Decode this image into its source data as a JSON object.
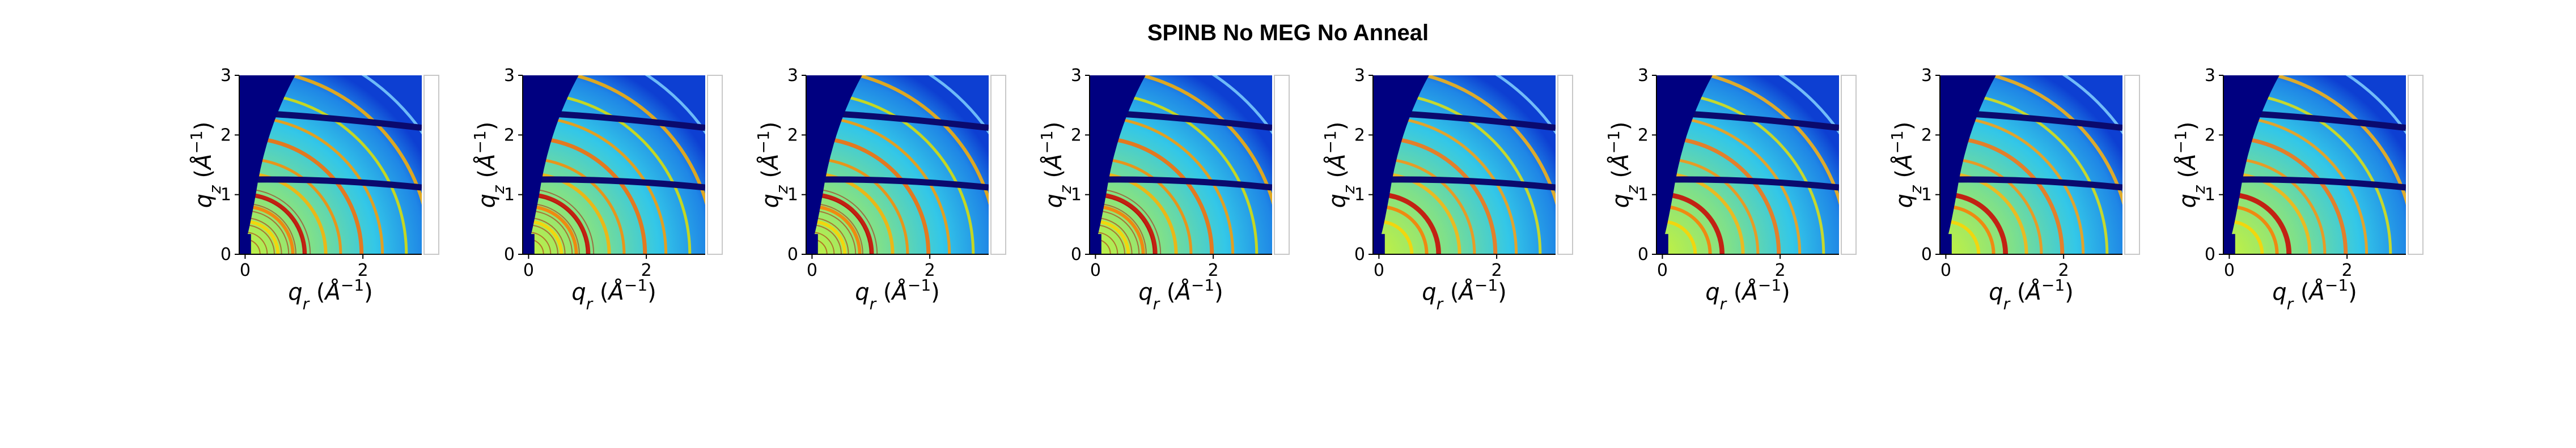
{
  "figure": {
    "title": "SPINB No MEG No Anneal"
  },
  "chart_data": [
    {
      "type": "heatmap",
      "panel": 1,
      "xlabel": "q_r (Å^-1)",
      "ylabel": "q_z (Å^-1)",
      "xticks": [
        0,
        2
      ],
      "yticks": [
        0,
        1,
        2,
        3
      ],
      "xlim": [
        -0.1,
        3.0
      ],
      "ylim": [
        0,
        3
      ],
      "intensity_level": 1.0
    },
    {
      "type": "heatmap",
      "panel": 2,
      "xlabel": "q_r (Å^-1)",
      "ylabel": "q_z (Å^-1)",
      "xticks": [
        0,
        2
      ],
      "yticks": [
        0,
        1,
        2,
        3
      ],
      "xlim": [
        -0.1,
        3.0
      ],
      "ylim": [
        0,
        3
      ],
      "intensity_level": 0.9
    },
    {
      "type": "heatmap",
      "panel": 3,
      "xlabel": "q_r (Å^-1)",
      "ylabel": "q_z (Å^-1)",
      "xticks": [
        0,
        2
      ],
      "yticks": [
        0,
        1,
        2,
        3
      ],
      "xlim": [
        -0.1,
        3.0
      ],
      "ylim": [
        0,
        3
      ],
      "intensity_level": 0.8
    },
    {
      "type": "heatmap",
      "panel": 4,
      "xlabel": "q_r (Å^-1)",
      "ylabel": "q_z (Å^-1)",
      "xticks": [
        0,
        2
      ],
      "yticks": [
        0,
        1,
        2,
        3
      ],
      "xlim": [
        -0.1,
        3.0
      ],
      "ylim": [
        0,
        3
      ],
      "intensity_level": 0.7
    },
    {
      "type": "heatmap",
      "panel": 5,
      "xlabel": "q_r (Å^-1)",
      "ylabel": "q_z (Å^-1)",
      "xticks": [
        0,
        2
      ],
      "yticks": [
        0,
        1,
        2,
        3
      ],
      "xlim": [
        -0.1,
        3.0
      ],
      "ylim": [
        0,
        3
      ],
      "intensity_level": 0.5
    },
    {
      "type": "heatmap",
      "panel": 6,
      "xlabel": "q_r (Å^-1)",
      "ylabel": "q_z (Å^-1)",
      "xticks": [
        0,
        2
      ],
      "yticks": [
        0,
        1,
        2,
        3
      ],
      "xlim": [
        -0.1,
        3.0
      ],
      "ylim": [
        0,
        3
      ],
      "intensity_level": 0.5
    },
    {
      "type": "heatmap",
      "panel": 7,
      "xlabel": "q_r (Å^-1)",
      "ylabel": "q_z (Å^-1)",
      "xticks": [
        0,
        2
      ],
      "yticks": [
        0,
        1,
        2,
        3
      ],
      "xlim": [
        -0.1,
        3.0
      ],
      "ylim": [
        0,
        3
      ],
      "intensity_level": 0.45
    },
    {
      "type": "heatmap",
      "panel": 8,
      "xlabel": "q_r (Å^-1)",
      "ylabel": "q_z (Å^-1)",
      "xticks": [
        0,
        2
      ],
      "yticks": [
        0,
        1,
        2,
        3
      ],
      "xlim": [
        -0.1,
        3.0
      ],
      "ylim": [
        0,
        3
      ],
      "intensity_level": 0.4
    }
  ]
}
